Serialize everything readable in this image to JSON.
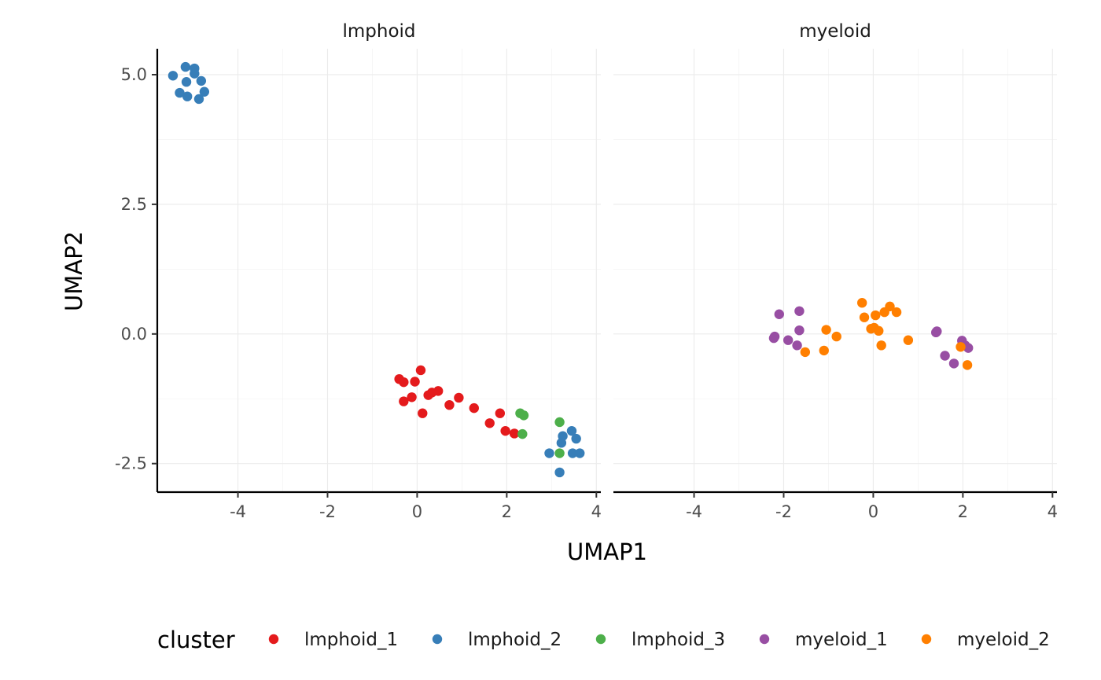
{
  "chart_data": {
    "type": "scatter",
    "xlabel": "UMAP1",
    "ylabel": "UMAP2",
    "xlim": [
      -5.8,
      4.1
    ],
    "ylim": [
      -3.05,
      5.5
    ],
    "x_ticks": [
      -4,
      -2,
      0,
      2,
      4
    ],
    "y_ticks": [
      -2.5,
      0.0,
      2.5,
      5.0
    ],
    "x_tick_labels": [
      "-4",
      "-2",
      "0",
      "2",
      "4"
    ],
    "y_tick_labels": [
      "-2.5",
      "0.0",
      "2.5",
      "5.0"
    ],
    "grid": true,
    "legend": {
      "title": "cluster",
      "position": "bottom"
    },
    "panels": [
      {
        "name": "lmphoid",
        "series": [
          {
            "name": "lmphoid_1",
            "color": "#E41A1C",
            "points": [
              [
                -0.4,
                -0.87
              ],
              [
                -0.3,
                -0.93
              ],
              [
                0.08,
                -0.7
              ],
              [
                -0.05,
                -0.92
              ],
              [
                -0.3,
                -1.3
              ],
              [
                -0.12,
                -1.22
              ],
              [
                0.25,
                -1.18
              ],
              [
                0.33,
                -1.13
              ],
              [
                0.47,
                -1.1
              ],
              [
                0.12,
                -1.53
              ],
              [
                0.93,
                -1.23
              ],
              [
                0.72,
                -1.37
              ],
              [
                1.27,
                -1.43
              ],
              [
                1.85,
                -1.53
              ],
              [
                1.62,
                -1.72
              ],
              [
                1.97,
                -1.87
              ],
              [
                2.17,
                -1.92
              ]
            ]
          },
          {
            "name": "lmphoid_2",
            "color": "#377EB8",
            "points": [
              [
                -5.45,
                4.98
              ],
              [
                -5.17,
                5.15
              ],
              [
                -4.97,
                5.12
              ],
              [
                -4.97,
                5.02
              ],
              [
                -5.15,
                4.86
              ],
              [
                -4.82,
                4.88
              ],
              [
                -5.3,
                4.65
              ],
              [
                -5.13,
                4.58
              ],
              [
                -4.75,
                4.67
              ],
              [
                -4.87,
                4.53
              ],
              [
                3.45,
                -1.87
              ],
              [
                3.25,
                -1.97
              ],
              [
                3.55,
                -2.02
              ],
              [
                3.22,
                -2.1
              ],
              [
                2.95,
                -2.3
              ],
              [
                3.47,
                -2.3
              ],
              [
                3.63,
                -2.3
              ],
              [
                3.18,
                -2.67
              ]
            ]
          },
          {
            "name": "lmphoid_3",
            "color": "#4DAF4A",
            "points": [
              [
                2.3,
                -1.53
              ],
              [
                2.38,
                -1.57
              ],
              [
                3.18,
                -1.7
              ],
              [
                2.35,
                -1.93
              ],
              [
                3.18,
                -2.3
              ]
            ]
          }
        ]
      },
      {
        "name": "myeloid",
        "series": [
          {
            "name": "myeloid_1",
            "color": "#984EA3",
            "points": [
              [
                -2.1,
                0.38
              ],
              [
                -1.65,
                0.44
              ],
              [
                -1.65,
                0.07
              ],
              [
                -2.2,
                -0.05
              ],
              [
                -2.22,
                -0.08
              ],
              [
                -1.9,
                -0.12
              ],
              [
                -1.7,
                -0.22
              ],
              [
                1.4,
                0.03
              ],
              [
                1.42,
                0.05
              ],
              [
                1.98,
                -0.13
              ],
              [
                2.05,
                -0.22
              ],
              [
                2.12,
                -0.27
              ],
              [
                1.6,
                -0.42
              ],
              [
                1.8,
                -0.57
              ]
            ]
          },
          {
            "name": "myeloid_2",
            "color": "#FF7F00",
            "points": [
              [
                -0.25,
                0.6
              ],
              [
                0.37,
                0.53
              ],
              [
                -0.2,
                0.32
              ],
              [
                0.05,
                0.36
              ],
              [
                0.25,
                0.42
              ],
              [
                0.52,
                0.42
              ],
              [
                0.02,
                0.12
              ],
              [
                -0.05,
                0.1
              ],
              [
                0.12,
                0.06
              ],
              [
                -1.05,
                0.08
              ],
              [
                -0.82,
                -0.05
              ],
              [
                0.78,
                -0.12
              ],
              [
                0.18,
                -0.22
              ],
              [
                -1.1,
                -0.32
              ],
              [
                -1.52,
                -0.35
              ],
              [
                1.95,
                -0.25
              ],
              [
                2.1,
                -0.6
              ]
            ]
          }
        ]
      }
    ]
  }
}
